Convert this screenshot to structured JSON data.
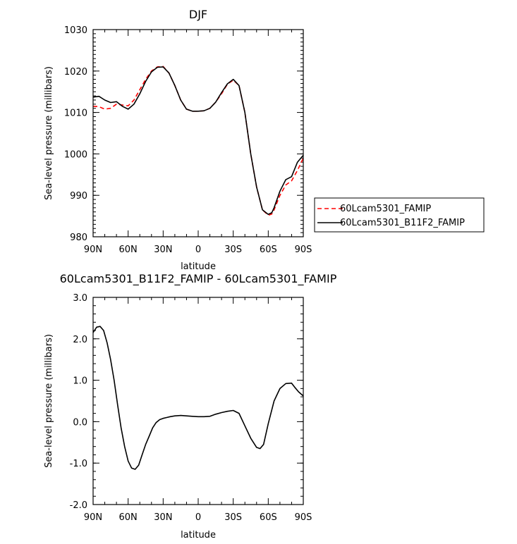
{
  "chart_data": [
    {
      "type": "line",
      "title": "DJF",
      "xlabel": "latitude",
      "ylabel": "Sea-level pressure (millibars)",
      "xlim": [
        -90,
        90
      ],
      "ylim": [
        980,
        1030
      ],
      "xticks": [
        -90,
        -60,
        -30,
        0,
        30,
        60,
        90
      ],
      "xtick_labels": [
        "90N",
        "60N",
        "30N",
        "0",
        "30S",
        "60S",
        "90S"
      ],
      "yticks": [
        980,
        990,
        1000,
        1010,
        1020,
        1030
      ],
      "ytick_labels": [
        "980",
        "990",
        "1000",
        "1010",
        "1020",
        "1030"
      ],
      "grid": false,
      "legend": "right, outside plot",
      "series": [
        {
          "name": "60Lcam5301_FAMIP",
          "color": "#ff0000",
          "style": "dashed",
          "x": [
            -90,
            -85,
            -80,
            -75,
            -70,
            -65,
            -60,
            -55,
            -50,
            -45,
            -40,
            -35,
            -30,
            -25,
            -20,
            -15,
            -10,
            -5,
            0,
            5,
            10,
            15,
            20,
            25,
            30,
            35,
            40,
            45,
            50,
            55,
            60,
            63,
            65,
            70,
            75,
            80,
            85,
            90
          ],
          "y": [
            1011.5,
            1011.4,
            1010.8,
            1011.0,
            1012.0,
            1011.8,
            1011.6,
            1013.0,
            1015.5,
            1018.0,
            1020.0,
            1021.0,
            1021.1,
            1019.5,
            1016.5,
            1013.0,
            1010.8,
            1010.3,
            1010.3,
            1010.4,
            1011.0,
            1012.5,
            1014.5,
            1016.8,
            1017.8,
            1016.5,
            1010.0,
            1000.0,
            992.0,
            986.5,
            985.2,
            985.5,
            986.5,
            990.0,
            992.5,
            993.5,
            996.0,
            999.0
          ]
        },
        {
          "name": "60Lcam5301_B11F2_FAMIP",
          "color": "#000000",
          "style": "solid",
          "x": [
            -90,
            -85,
            -80,
            -75,
            -70,
            -65,
            -60,
            -55,
            -50,
            -45,
            -40,
            -35,
            -30,
            -25,
            -20,
            -15,
            -10,
            -5,
            0,
            5,
            10,
            15,
            20,
            25,
            30,
            35,
            40,
            45,
            50,
            55,
            60,
            63,
            65,
            70,
            75,
            80,
            85,
            90
          ],
          "y": [
            1013.7,
            1013.9,
            1013.0,
            1012.4,
            1012.6,
            1011.5,
            1010.8,
            1012.0,
            1014.5,
            1017.5,
            1019.8,
            1020.9,
            1021.0,
            1019.5,
            1016.5,
            1013.0,
            1010.8,
            1010.3,
            1010.3,
            1010.4,
            1011.0,
            1012.5,
            1014.8,
            1016.9,
            1018.0,
            1016.5,
            1010.0,
            1000.0,
            992.0,
            986.5,
            985.4,
            985.8,
            987.0,
            991.0,
            993.8,
            994.5,
            998.0,
            999.7
          ]
        }
      ]
    },
    {
      "type": "line",
      "title": "60Lcam5301_B11F2_FAMIP - 60Lcam5301_FAMIP",
      "xlabel": "latitude",
      "ylabel": "Sea-level pressure (millibars)",
      "xlim": [
        -90,
        90
      ],
      "ylim": [
        -2.0,
        3.0
      ],
      "xticks": [
        -90,
        -60,
        -30,
        0,
        30,
        60,
        90
      ],
      "xtick_labels": [
        "90N",
        "60N",
        "30N",
        "0",
        "30S",
        "60S",
        "90S"
      ],
      "yticks": [
        -2.0,
        -1.0,
        0.0,
        1.0,
        2.0,
        3.0
      ],
      "ytick_labels": [
        "-2.0",
        "-1.0",
        "0.0",
        "1.0",
        "2.0",
        "3.0"
      ],
      "grid": false,
      "series": [
        {
          "color": "#000000",
          "style": "solid",
          "x": [
            -90,
            -87,
            -84,
            -81,
            -78,
            -75,
            -72,
            -69,
            -66,
            -63,
            -60,
            -57,
            -54,
            -51,
            -48,
            -45,
            -42,
            -39,
            -36,
            -33,
            -30,
            -27,
            -24,
            -20,
            -15,
            -10,
            -5,
            0,
            5,
            10,
            15,
            20,
            25,
            30,
            35,
            40,
            45,
            50,
            53,
            56,
            60,
            65,
            70,
            75,
            80,
            83,
            86,
            90
          ],
          "y": [
            2.15,
            2.28,
            2.3,
            2.2,
            1.9,
            1.5,
            1.0,
            0.4,
            -0.15,
            -0.6,
            -0.95,
            -1.12,
            -1.15,
            -1.05,
            -0.8,
            -0.55,
            -0.35,
            -0.15,
            -0.02,
            0.05,
            0.08,
            0.1,
            0.12,
            0.14,
            0.15,
            0.14,
            0.13,
            0.12,
            0.12,
            0.13,
            0.18,
            0.22,
            0.25,
            0.27,
            0.2,
            -0.1,
            -0.4,
            -0.62,
            -0.65,
            -0.55,
            -0.05,
            0.5,
            0.8,
            0.92,
            0.93,
            0.82,
            0.72,
            0.62
          ]
        }
      ]
    }
  ]
}
